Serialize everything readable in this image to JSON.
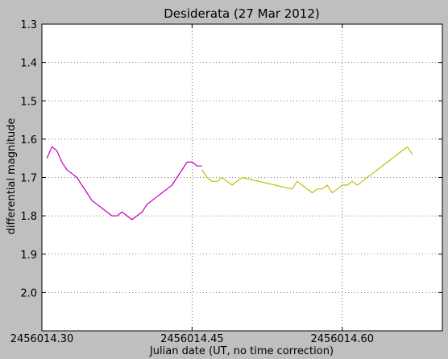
{
  "chart_data": {
    "type": "line",
    "title": "Desiderata (27 Mar 2012)",
    "xlabel": "Julian date (UT, no time correction)",
    "ylabel": "differential magnitude",
    "xlim": [
      2456014.3,
      2456014.7
    ],
    "ylim": [
      1.3,
      2.1
    ],
    "y_inverted": true,
    "grid": true,
    "x_ticks": [
      2456014.3,
      2456014.45,
      2456014.6
    ],
    "x_tick_labels": [
      "2456014.30",
      "2456014.45",
      "2456014.60"
    ],
    "y_ticks": [
      1.3,
      1.4,
      1.5,
      1.6,
      1.7,
      1.8,
      1.9,
      2.0
    ],
    "y_tick_labels": [
      "1.3",
      "1.4",
      "1.5",
      "1.6",
      "1.7",
      "1.8",
      "1.9",
      "2.0"
    ],
    "series": [
      {
        "color": "#bf00bf",
        "x": [
          2456014.305,
          2456014.31,
          2456014.315,
          2456014.32,
          2456014.325,
          2456014.33,
          2456014.335,
          2456014.34,
          2456014.345,
          2456014.35,
          2456014.355,
          2456014.36,
          2456014.365,
          2456014.37,
          2456014.375,
          2456014.38,
          2456014.385,
          2456014.39,
          2456014.395,
          2456014.4,
          2456014.405,
          2456014.41,
          2456014.415,
          2456014.42,
          2456014.425,
          2456014.43,
          2456014.435,
          2456014.44,
          2456014.445,
          2456014.45,
          2456014.455,
          2456014.46
        ],
        "y": [
          1.65,
          1.62,
          1.63,
          1.66,
          1.68,
          1.69,
          1.7,
          1.72,
          1.74,
          1.76,
          1.77,
          1.78,
          1.79,
          1.8,
          1.8,
          1.79,
          1.8,
          1.81,
          1.8,
          1.79,
          1.77,
          1.76,
          1.75,
          1.74,
          1.73,
          1.72,
          1.7,
          1.68,
          1.66,
          1.66,
          1.67,
          1.67
        ]
      },
      {
        "color": "#bfbf00",
        "x": [
          2456014.46,
          2456014.465,
          2456014.47,
          2456014.475,
          2456014.48,
          2456014.485,
          2456014.49,
          2456014.495,
          2456014.5,
          2456014.55,
          2456014.555,
          2456014.56,
          2456014.565,
          2456014.57,
          2456014.575,
          2456014.58,
          2456014.585,
          2456014.59,
          2456014.595,
          2456014.6,
          2456014.605,
          2456014.61,
          2456014.615,
          2456014.62,
          2456014.625,
          2456014.63,
          2456014.635,
          2456014.64,
          2456014.645,
          2456014.65,
          2456014.655,
          2456014.66,
          2456014.665,
          2456014.67
        ],
        "y": [
          1.68,
          1.7,
          1.71,
          1.71,
          1.7,
          1.71,
          1.72,
          1.71,
          1.7,
          1.73,
          1.71,
          1.72,
          1.73,
          1.74,
          1.73,
          1.73,
          1.72,
          1.74,
          1.73,
          1.72,
          1.72,
          1.71,
          1.72,
          1.71,
          1.7,
          1.69,
          1.68,
          1.67,
          1.66,
          1.65,
          1.64,
          1.63,
          1.62,
          1.64
        ]
      }
    ]
  }
}
